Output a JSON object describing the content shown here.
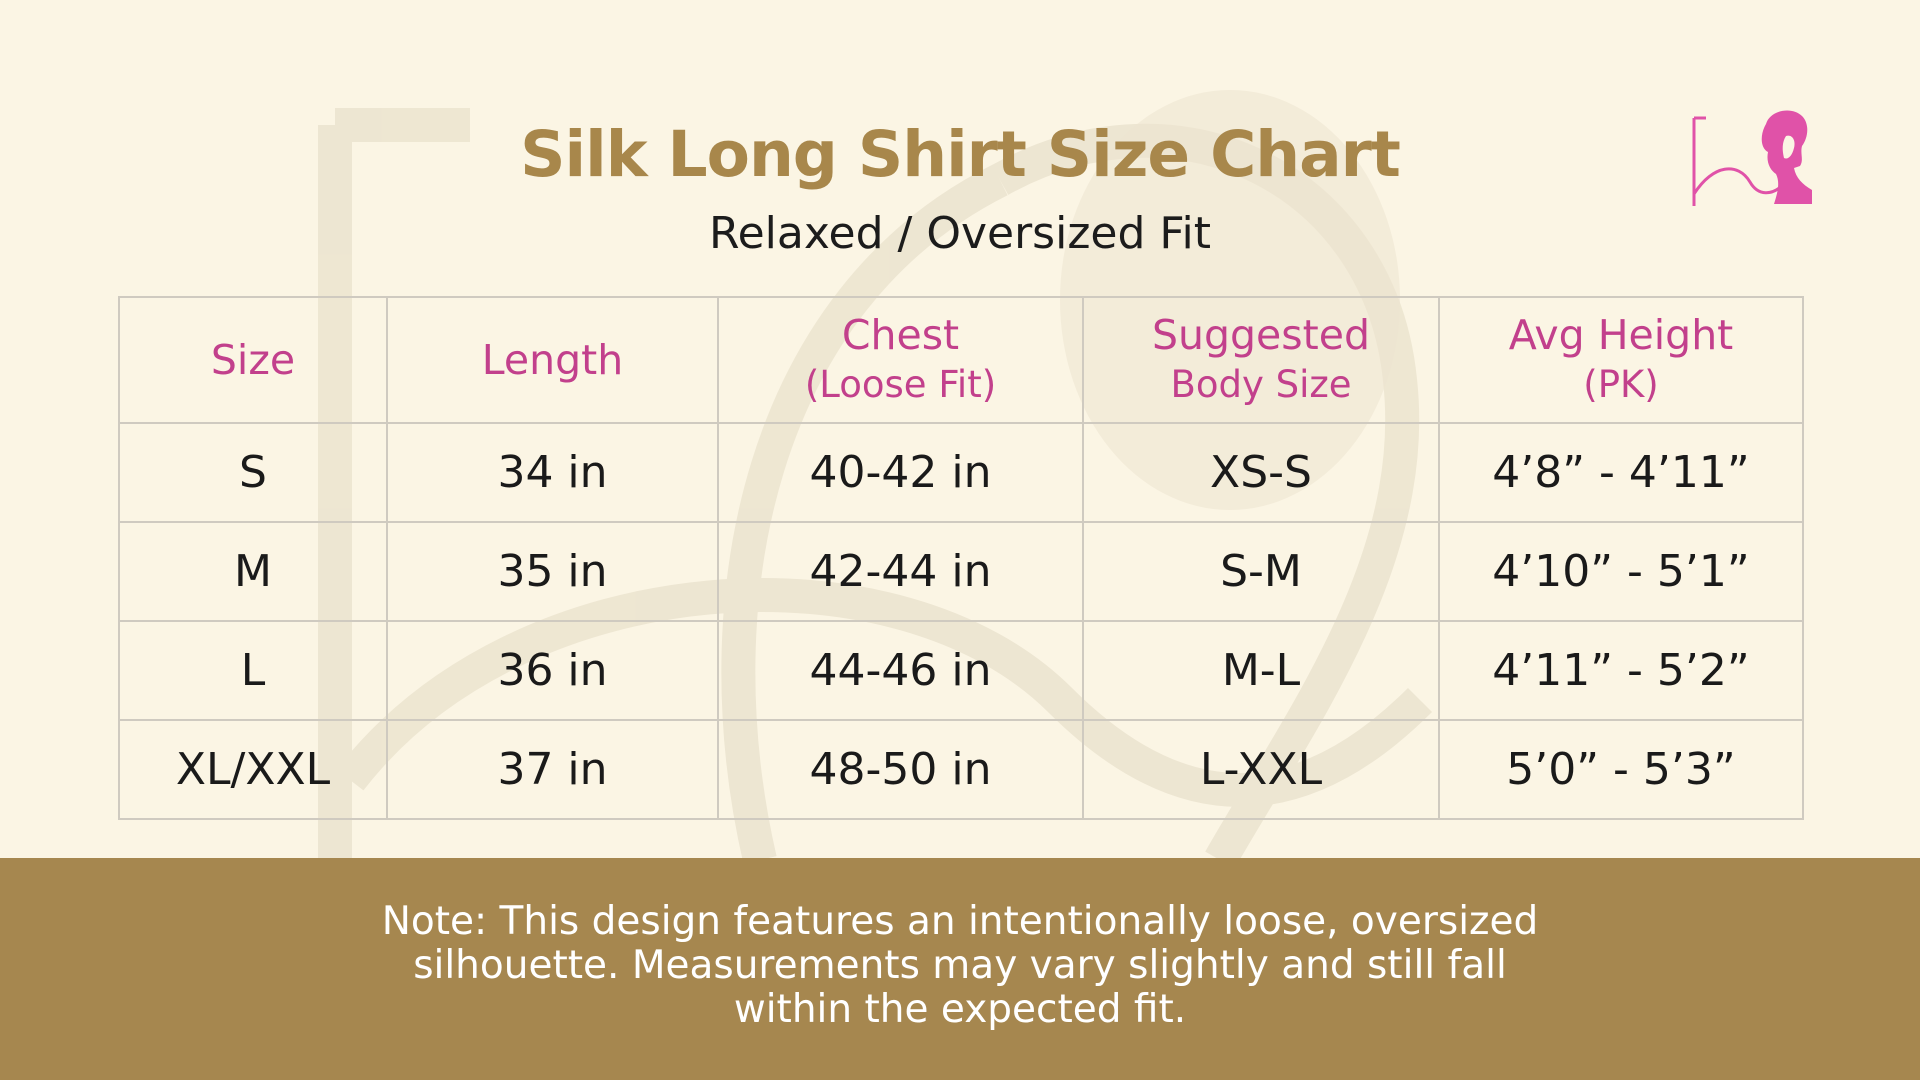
{
  "title": "Silk Long Shirt Size Chart",
  "subtitle": "Relaxed / Oversized Fit",
  "logo_icon": "brand-monogram-woman-logo-icon",
  "colors": {
    "background": "#fbf5e4",
    "title": "#a8874b",
    "header_text": "#c2408c",
    "note_band": "#a6874f",
    "logo": "#e052a8"
  },
  "table": {
    "headers": [
      {
        "line1": "Size",
        "line2": ""
      },
      {
        "line1": "Length",
        "line2": ""
      },
      {
        "line1": "Chest",
        "line2": "(Loose Fit)"
      },
      {
        "line1": "Suggested",
        "line2": "Body Size"
      },
      {
        "line1": "Avg Height",
        "line2": "(PK)"
      }
    ],
    "rows": [
      [
        "S",
        "34 in",
        "40-42 in",
        "XS-S",
        "4’8” - 4’11”"
      ],
      [
        "M",
        "35 in",
        "42-44 in",
        "S-M",
        "4’10” - 5’1”"
      ],
      [
        "L",
        "36 in",
        "44-46 in",
        "M-L",
        "4’11” - 5’2”"
      ],
      [
        "XL/XXL",
        "37 in",
        "48-50 in",
        "L-XXL",
        "5’0” - 5’3”"
      ]
    ]
  },
  "note": {
    "line1": "Note: This design features an intentionally loose, oversized",
    "line2": "silhouette. Measurements may vary slightly and still fall",
    "line3": "within the expected fit."
  }
}
